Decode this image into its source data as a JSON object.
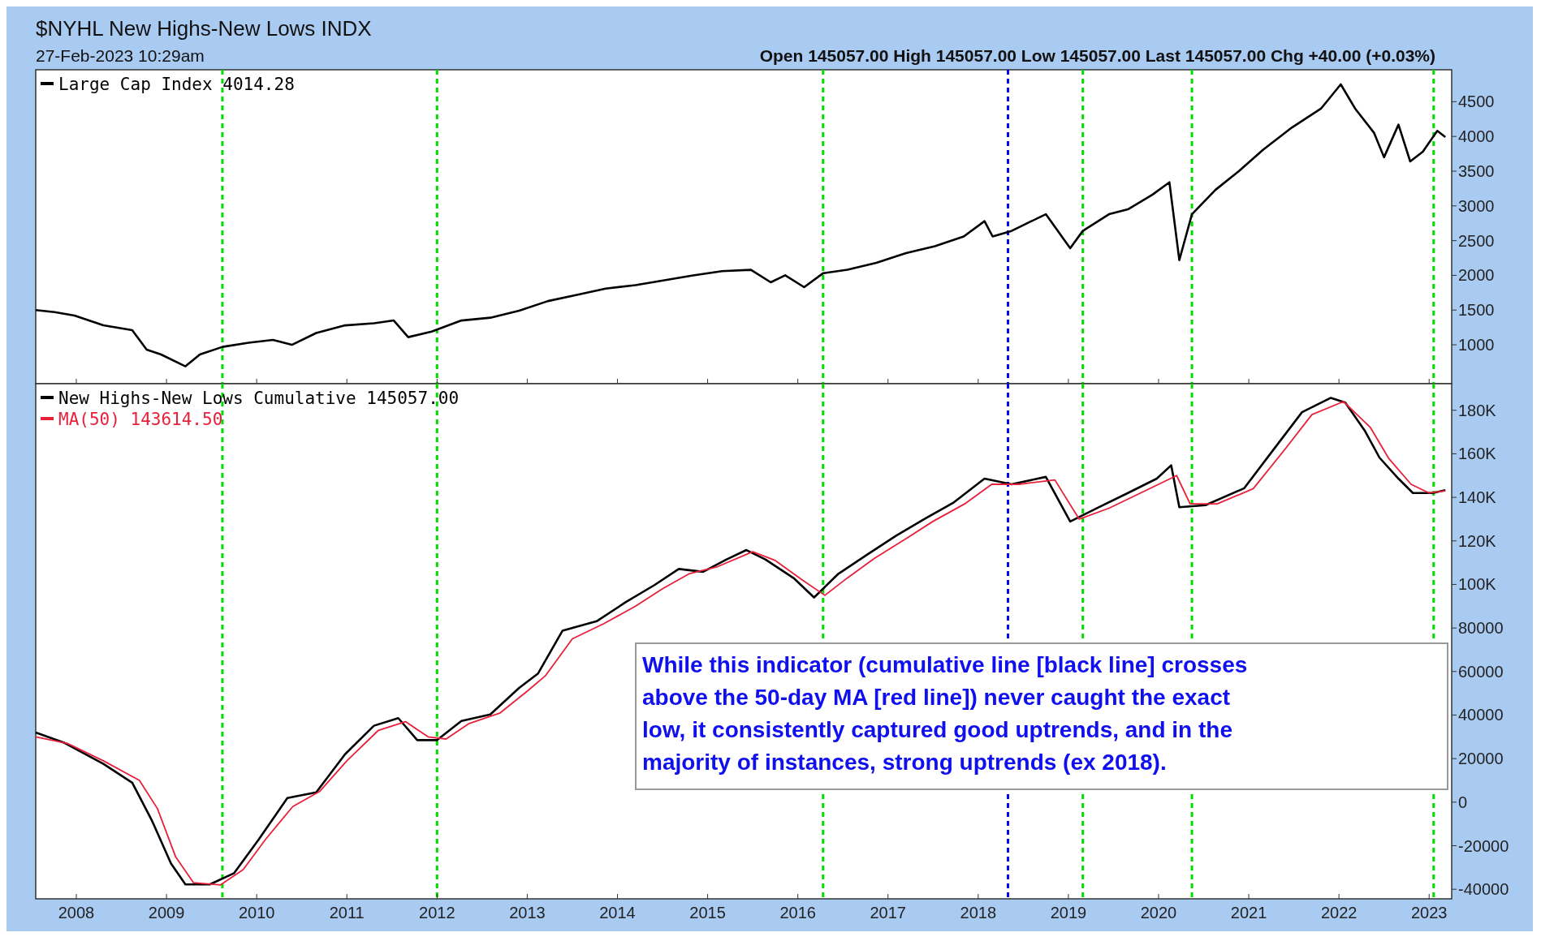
{
  "chart_data": [
    {
      "type": "line",
      "title": "$NYHL New Highs-New Lows INDX",
      "subtitle": "27-Feb-2023 10:29am",
      "annotations": [
        "Open 145057.00  High 145057.00  Low 145057.00  Last 145057.00  Chg +40.00 (+0.03%)"
      ],
      "xlim": [
        2007.55,
        2023.25
      ],
      "xticks": [
        2008,
        2009,
        2010,
        2011,
        2012,
        2013,
        2014,
        2015,
        2016,
        2017,
        2018,
        2019,
        2020,
        2021,
        2022,
        2023
      ],
      "ylim": [
        440,
        4960
      ],
      "yticks": [
        1000,
        1500,
        2000,
        2500,
        3000,
        3500,
        4000,
        4500
      ],
      "tick_labels": "y",
      "legend": "top left",
      "grid": false,
      "series": [
        {
          "name": "Large Cap Index 4014.28",
          "color": "#000000",
          "x": [
            2007.55,
            2007.76,
            2007.98,
            2008.3,
            2008.62,
            2008.78,
            2008.94,
            2009.21,
            2009.37,
            2009.62,
            2009.91,
            2010.18,
            2010.39,
            2010.66,
            2010.98,
            2011.3,
            2011.52,
            2011.68,
            2011.94,
            2012.27,
            2012.59,
            2012.91,
            2013.23,
            2013.55,
            2013.87,
            2014.2,
            2014.52,
            2014.84,
            2015.16,
            2015.48,
            2015.7,
            2015.86,
            2016.07,
            2016.28,
            2016.55,
            2016.87,
            2017.2,
            2017.52,
            2017.84,
            2018.07,
            2018.16,
            2018.37,
            2018.59,
            2018.75,
            2019.02,
            2019.16,
            2019.45,
            2019.66,
            2019.93,
            2020.12,
            2020.23,
            2020.37,
            2020.63,
            2020.89,
            2021.16,
            2021.48,
            2021.8,
            2022.02,
            2022.18,
            2022.39,
            2022.5,
            2022.66,
            2022.79,
            2022.93,
            2023.09,
            2023.18
          ],
          "values": [
            1500,
            1470,
            1420,
            1280,
            1210,
            930,
            860,
            690,
            860,
            970,
            1030,
            1070,
            1000,
            1170,
            1280,
            1310,
            1350,
            1110,
            1190,
            1350,
            1390,
            1490,
            1630,
            1720,
            1810,
            1860,
            1930,
            2000,
            2060,
            2080,
            1900,
            2000,
            1830,
            2030,
            2080,
            2180,
            2320,
            2420,
            2560,
            2780,
            2560,
            2640,
            2780,
            2880,
            2390,
            2640,
            2880,
            2950,
            3160,
            3340,
            2220,
            2880,
            3230,
            3500,
            3810,
            4130,
            4400,
            4750,
            4400,
            4050,
            3700,
            4170,
            3640,
            3780,
            4080,
            3990
          ]
        }
      ],
      "ref_lines": [
        {
          "axis": "x",
          "value": 2009.62,
          "color": "#00dd00",
          "line_style": "dashed"
        },
        {
          "axis": "x",
          "value": 2012.0,
          "color": "#00dd00",
          "line_style": "dashed"
        },
        {
          "axis": "x",
          "value": 2016.28,
          "color": "#00dd00",
          "line_style": "dashed"
        },
        {
          "axis": "x",
          "value": 2018.33,
          "color": "#0000ee",
          "line_style": "dashed"
        },
        {
          "axis": "x",
          "value": 2019.16,
          "color": "#00dd00",
          "line_style": "dashed"
        },
        {
          "axis": "x",
          "value": 2020.37,
          "color": "#00dd00",
          "line_style": "dashed"
        },
        {
          "axis": "x",
          "value": 2023.05,
          "color": "#00dd00",
          "line_style": "dashed"
        }
      ]
    },
    {
      "type": "line",
      "annotations": [
        "While this indicator (cumulative line [black line] crosses above the 50-day MA [red line]) never caught the exact low, it consistently captured good uptrends, and in the majority of instances, strong uptrends (ex 2018)."
      ],
      "xlim": [
        2007.55,
        2023.25
      ],
      "xticks": [
        2008,
        2009,
        2010,
        2011,
        2012,
        2013,
        2014,
        2015,
        2016,
        2017,
        2018,
        2019,
        2020,
        2021,
        2022,
        2023
      ],
      "ylim": [
        -44400,
        192200
      ],
      "yticks": [
        {
          "value": 180000,
          "label": "180K"
        },
        {
          "value": 160000,
          "label": "160K"
        },
        {
          "value": 140000,
          "label": "140K"
        },
        {
          "value": 120000,
          "label": "120K"
        },
        {
          "value": 100000,
          "label": "100K"
        },
        80000,
        60000,
        40000,
        20000,
        0,
        -20000,
        -40000
      ],
      "legend": "top left",
      "grid": false,
      "series": [
        {
          "name": "New Highs-New Lows Cumulative 145057.00",
          "color": "#000000",
          "x": [
            2007.55,
            2007.87,
            2008.3,
            2008.62,
            2008.84,
            2009.05,
            2009.21,
            2009.48,
            2009.75,
            2010.02,
            2010.34,
            2010.66,
            2010.98,
            2011.3,
            2011.57,
            2011.78,
            2012.0,
            2012.27,
            2012.59,
            2012.91,
            2013.12,
            2013.39,
            2013.77,
            2014.09,
            2014.41,
            2014.68,
            2014.95,
            2015.21,
            2015.43,
            2015.64,
            2015.96,
            2016.18,
            2016.45,
            2016.77,
            2017.09,
            2017.41,
            2017.73,
            2018.07,
            2018.37,
            2018.75,
            2019.02,
            2019.34,
            2019.66,
            2019.98,
            2020.14,
            2020.23,
            2020.52,
            2020.95,
            2021.27,
            2021.59,
            2021.91,
            2022.07,
            2022.29,
            2022.45,
            2022.66,
            2022.82,
            2023.04,
            2023.18
          ],
          "values": [
            32000,
            27200,
            17600,
            8900,
            -8600,
            -28200,
            -37800,
            -37800,
            -32600,
            -17300,
            1900,
            4500,
            22000,
            35100,
            38600,
            28500,
            28500,
            37300,
            40300,
            52500,
            59100,
            78700,
            83100,
            91800,
            99700,
            107100,
            105800,
            111500,
            115800,
            111500,
            102700,
            94000,
            104900,
            113700,
            122400,
            130200,
            137700,
            148600,
            146000,
            149400,
            128900,
            135500,
            142000,
            148600,
            154700,
            135500,
            136400,
            144200,
            161700,
            179100,
            185700,
            183500,
            170400,
            158200,
            148600,
            142000,
            142000,
            143300
          ]
        },
        {
          "name": "MA(50) 143614.50",
          "color": "#e8203a",
          "x": [
            2007.55,
            2007.9,
            2008.3,
            2008.7,
            2008.9,
            2009.1,
            2009.3,
            2009.6,
            2009.85,
            2010.1,
            2010.4,
            2010.7,
            2011.0,
            2011.35,
            2011.65,
            2011.9,
            2012.1,
            2012.35,
            2012.7,
            2013.0,
            2013.2,
            2013.5,
            2013.85,
            2014.2,
            2014.5,
            2014.8,
            2015.1,
            2015.5,
            2015.75,
            2016.05,
            2016.3,
            2016.55,
            2016.85,
            2017.2,
            2017.5,
            2017.85,
            2018.15,
            2018.45,
            2018.85,
            2019.12,
            2019.45,
            2019.8,
            2020.2,
            2020.35,
            2020.65,
            2021.05,
            2021.4,
            2021.7,
            2022.05,
            2022.35,
            2022.55,
            2022.8,
            2023.0,
            2023.18
          ],
          "values": [
            30000,
            27000,
            19000,
            10000,
            -3000,
            -25000,
            -37000,
            -38000,
            -31000,
            -17000,
            -2000,
            5000,
            19000,
            33000,
            37000,
            30000,
            29000,
            36000,
            41000,
            51000,
            58000,
            75000,
            82000,
            90000,
            98000,
            105000,
            108000,
            115000,
            111000,
            102000,
            95000,
            103000,
            112000,
            121000,
            129000,
            137000,
            146000,
            146000,
            148000,
            130000,
            135000,
            142000,
            150000,
            137000,
            137000,
            144000,
            162000,
            178000,
            184000,
            172000,
            158000,
            146000,
            142000,
            143000
          ]
        }
      ],
      "ref_lines": [
        {
          "axis": "x",
          "value": 2009.62,
          "color": "#00dd00",
          "line_style": "dashed"
        },
        {
          "axis": "x",
          "value": 2012.0,
          "color": "#00dd00",
          "line_style": "dashed"
        },
        {
          "axis": "x",
          "value": 2016.28,
          "color": "#00dd00",
          "line_style": "dashed"
        },
        {
          "axis": "x",
          "value": 2018.33,
          "color": "#0000ee",
          "line_style": "dashed"
        },
        {
          "axis": "x",
          "value": 2019.16,
          "color": "#00dd00",
          "line_style": "dashed"
        },
        {
          "axis": "x",
          "value": 2020.37,
          "color": "#00dd00",
          "line_style": "dashed"
        },
        {
          "axis": "x",
          "value": 2023.05,
          "color": "#00dd00",
          "line_style": "dashed"
        }
      ]
    }
  ]
}
